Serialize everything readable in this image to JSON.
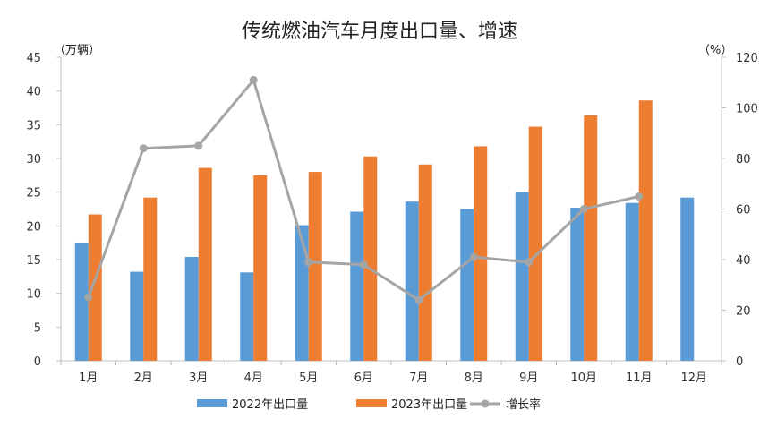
{
  "chart_data": {
    "type": "bar",
    "title": "传统燃油汽车月度出口量、增速",
    "left_unit": "（万辆）",
    "right_unit": "（%）",
    "categories": [
      "1月",
      "2月",
      "3月",
      "4月",
      "5月",
      "6月",
      "7月",
      "8月",
      "9月",
      "10月",
      "11月",
      "12月"
    ],
    "y_left": {
      "min": 0,
      "max": 45,
      "step": 5,
      "ticks": [
        "0",
        "5",
        "10",
        "15",
        "20",
        "25",
        "30",
        "35",
        "40",
        "45"
      ]
    },
    "y_right": {
      "min": 0,
      "max": 120,
      "step": 20,
      "ticks": [
        "0",
        "20",
        "40",
        "60",
        "80",
        "100",
        "120"
      ]
    },
    "series": [
      {
        "name": "2022年出口量",
        "type": "bar",
        "axis": "left",
        "color": "#5B9BD5",
        "values": [
          17.4,
          13.2,
          15.4,
          13.1,
          20.1,
          22.1,
          23.6,
          22.5,
          25.0,
          22.7,
          23.4,
          24.2
        ]
      },
      {
        "name": "2023年出口量",
        "type": "bar",
        "axis": "left",
        "color": "#ED7D31",
        "values": [
          21.7,
          24.2,
          28.6,
          27.5,
          28.0,
          30.3,
          29.1,
          31.8,
          34.7,
          36.4,
          38.6,
          null
        ]
      },
      {
        "name": "增长率",
        "type": "line",
        "axis": "right",
        "color": "#A5A5A5",
        "values": [
          25,
          84,
          85,
          111,
          39,
          38,
          24,
          41,
          39,
          60,
          65,
          null
        ]
      }
    ],
    "grid": false,
    "legend_position": "bottom"
  }
}
